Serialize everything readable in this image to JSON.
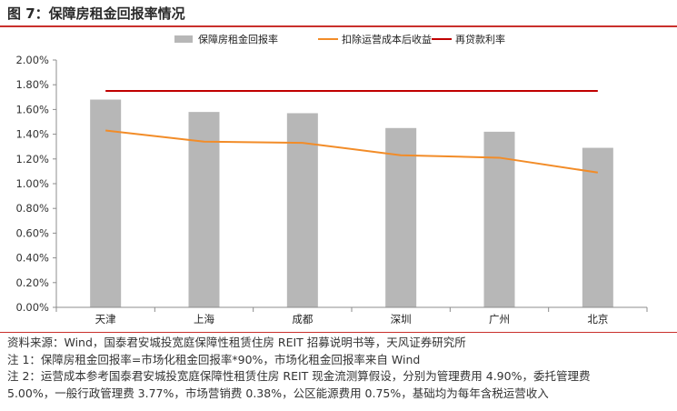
{
  "figure": {
    "title": "图 7：保障房租金回报率情况"
  },
  "chart_data": {
    "type": "bar",
    "categories": [
      "天津",
      "上海",
      "成都",
      "深圳",
      "广州",
      "北京"
    ],
    "y_ticks": [
      "0.00%",
      "0.20%",
      "0.40%",
      "0.60%",
      "0.80%",
      "1.00%",
      "1.20%",
      "1.40%",
      "1.60%",
      "1.80%",
      "2.00%"
    ],
    "ylim": [
      0,
      2.0
    ],
    "y_unit": "%",
    "legend_position": "top",
    "grid": false,
    "series": [
      {
        "name": "保障房租金回报率",
        "kind": "bar",
        "color": "#b7b7b7",
        "values": [
          1.68,
          1.58,
          1.57,
          1.45,
          1.42,
          1.29
        ]
      },
      {
        "name": "扣除运营成本后收益",
        "kind": "line",
        "color": "#f28c28",
        "values": [
          1.43,
          1.34,
          1.33,
          1.23,
          1.21,
          1.09
        ]
      },
      {
        "name": "再贷款利率",
        "kind": "line",
        "color": "#c00000",
        "values": [
          1.75,
          1.75,
          1.75,
          1.75,
          1.75,
          1.75
        ]
      }
    ]
  },
  "notes": [
    "资料来源：Wind，国泰君安城投宽庭保障性租赁住房 REIT 招募说明书等，天风证券研究所",
    "注 1：保障房租金回报率=市场化租金回报率*90%，市场化租金回报率来自 Wind",
    "注 2：运营成本参考国泰君安城投宽庭保障性租赁住房 REIT 现金流测算假设，分别为管理费用 4.90%，委托管理费",
    "5.00%，一般行政管理费 3.77%，市场营销费 0.38%，公区能源费用 0.75%，基础均为每年含税运营收入"
  ]
}
